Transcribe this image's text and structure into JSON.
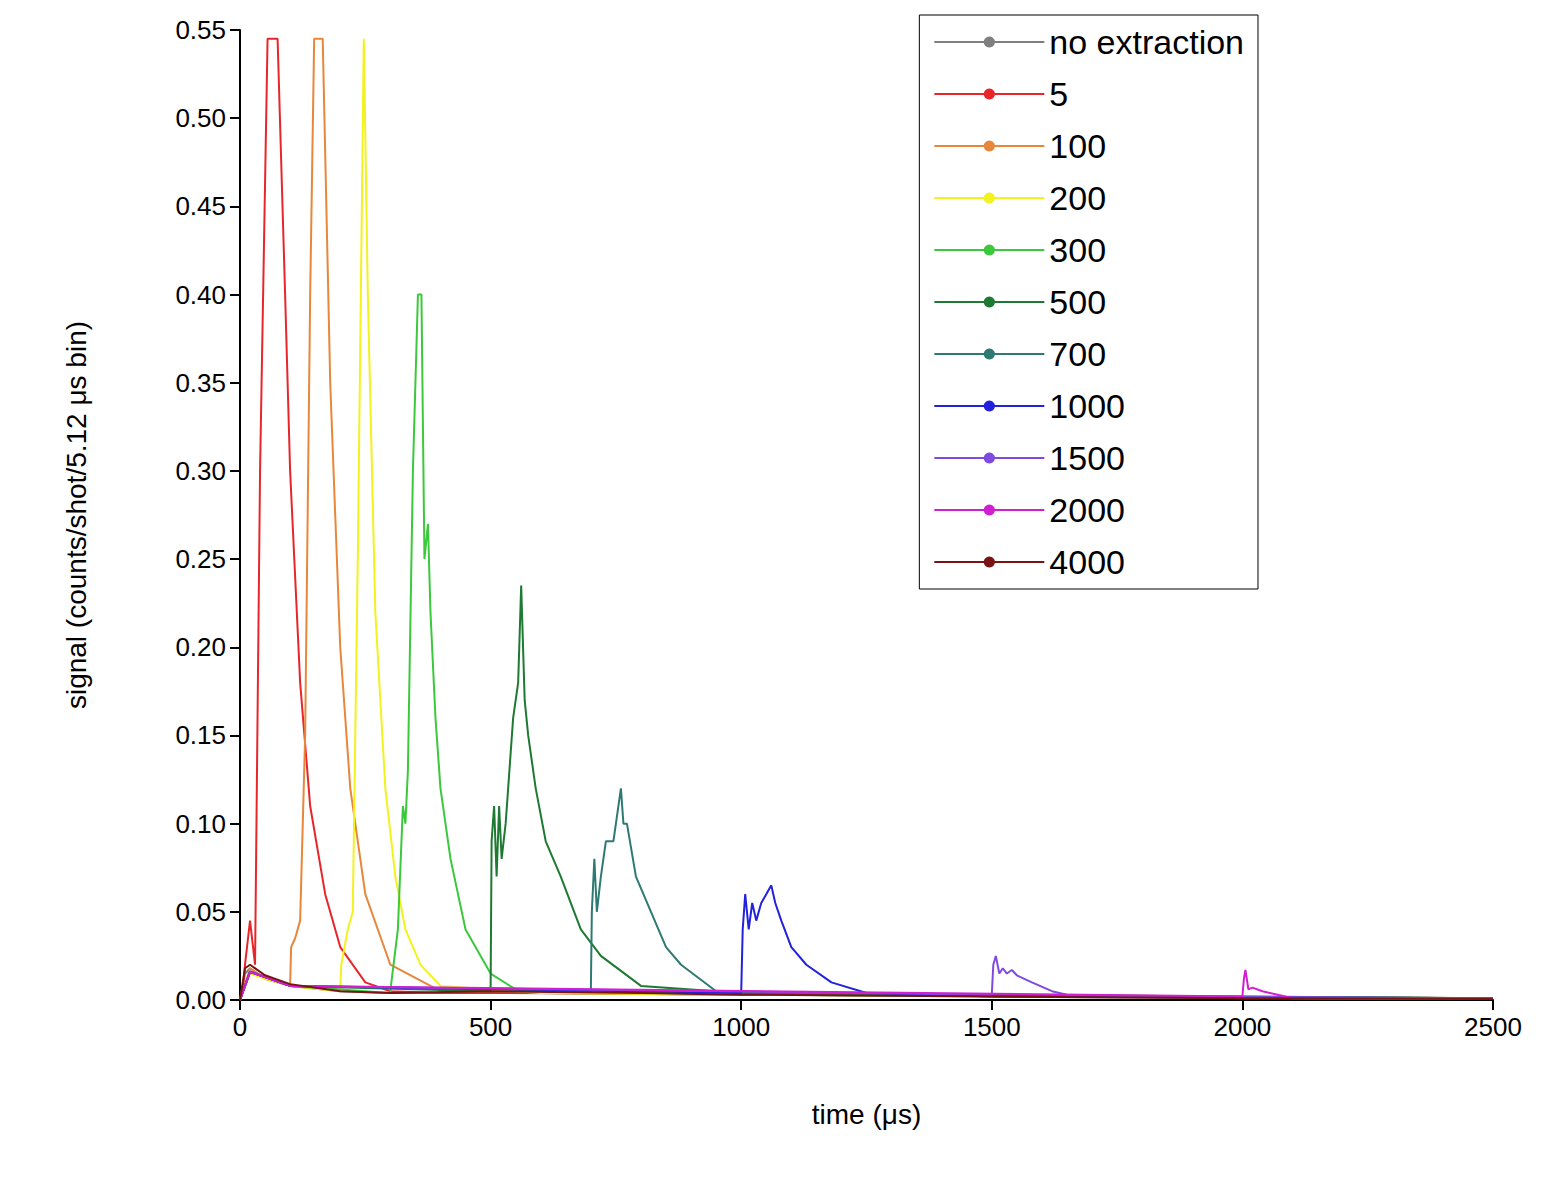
{
  "chart_data": {
    "type": "line",
    "x_label": "time (μs)",
    "y_label": "signal (counts/shot/5.12 μs bin)",
    "xlim": [
      0,
      2500
    ],
    "xticks": [
      0,
      500,
      1000,
      1500,
      2000,
      2500
    ],
    "ylim": [
      0,
      0.55
    ],
    "yticks": [
      {
        "value": 0,
        "label": "0.00"
      },
      0.05,
      {
        "value": 0.1,
        "label": "0.10"
      },
      0.15,
      {
        "value": 0.2,
        "label": "0.20"
      },
      0.25,
      {
        "value": 0.3,
        "label": "0.30"
      },
      0.35,
      {
        "value": 0.4,
        "label": "0.40"
      },
      0.45,
      {
        "value": 0.5,
        "label": "0.50"
      },
      0.55
    ],
    "grid": false,
    "legend": "upper right",
    "series": [
      {
        "name": "no extraction",
        "color": "#7f7f7f",
        "x": [
          0,
          10,
          20,
          50,
          100,
          200,
          300,
          500,
          1000,
          1500,
          2000,
          2500
        ],
        "values": [
          0,
          0.015,
          0.018,
          0.012,
          0.008,
          0.005,
          0.004,
          0.004,
          0.003,
          0.002,
          0.001,
          0.0005
        ]
      },
      {
        "name": "5",
        "color": "#e8262a",
        "x": [
          0,
          5,
          10,
          20,
          30,
          40,
          55,
          75,
          90,
          100,
          120,
          140,
          170,
          200,
          250,
          300,
          400,
          600,
          1000,
          2500
        ],
        "values": [
          0,
          0.005,
          0.02,
          0.045,
          0.02,
          0.3,
          0.545,
          0.545,
          0.4,
          0.3,
          0.18,
          0.11,
          0.06,
          0.03,
          0.01,
          0.005,
          0.004,
          0.004,
          0.003,
          0.001
        ]
      },
      {
        "name": "100",
        "color": "#e8873a",
        "x": [
          0,
          20,
          50,
          100,
          102,
          110,
          120,
          130,
          140,
          148,
          165,
          180,
          200,
          220,
          250,
          300,
          400,
          1000,
          2500
        ],
        "values": [
          0,
          0.018,
          0.012,
          0.008,
          0.03,
          0.035,
          0.045,
          0.15,
          0.4,
          0.545,
          0.545,
          0.35,
          0.2,
          0.12,
          0.06,
          0.02,
          0.005,
          0.004,
          0.001
        ]
      },
      {
        "name": "200",
        "color": "#f2f21e",
        "x": [
          0,
          20,
          50,
          100,
          200,
          202,
          215,
          225,
          235,
          247,
          255,
          270,
          290,
          310,
          330,
          360,
          400,
          600,
          1000,
          2500
        ],
        "values": [
          0,
          0.015,
          0.012,
          0.008,
          0.005,
          0.02,
          0.04,
          0.05,
          0.25,
          0.545,
          0.4,
          0.22,
          0.12,
          0.07,
          0.04,
          0.02,
          0.008,
          0.004,
          0.003,
          0.001
        ]
      },
      {
        "name": "300",
        "color": "#3cc83c",
        "x": [
          0,
          20,
          100,
          300,
          302,
          315,
          325,
          330,
          335,
          345,
          355,
          362,
          368,
          375,
          380,
          390,
          400,
          420,
          450,
          500,
          550,
          1000,
          2500
        ],
        "values": [
          0,
          0.016,
          0.008,
          0.004,
          0.01,
          0.04,
          0.11,
          0.1,
          0.13,
          0.3,
          0.4,
          0.4,
          0.25,
          0.27,
          0.22,
          0.16,
          0.12,
          0.08,
          0.04,
          0.015,
          0.006,
          0.003,
          0.001
        ]
      },
      {
        "name": "500",
        "color": "#1e7a32",
        "x": [
          0,
          20,
          100,
          500,
          502,
          507,
          512,
          517,
          522,
          530,
          545,
          555,
          561,
          568,
          575,
          590,
          610,
          640,
          680,
          720,
          800,
          1000,
          2500
        ],
        "values": [
          0,
          0.016,
          0.008,
          0.005,
          0.09,
          0.11,
          0.07,
          0.11,
          0.08,
          0.1,
          0.16,
          0.18,
          0.235,
          0.17,
          0.15,
          0.12,
          0.09,
          0.07,
          0.04,
          0.025,
          0.008,
          0.004,
          0.001
        ]
      },
      {
        "name": "700",
        "color": "#2e7a72",
        "x": [
          0,
          20,
          100,
          700,
          702,
          707,
          712,
          720,
          730,
          745,
          760,
          765,
          772,
          790,
          820,
          850,
          880,
          950,
          1200,
          2500
        ],
        "values": [
          0,
          0.016,
          0.008,
          0.005,
          0.05,
          0.08,
          0.05,
          0.07,
          0.09,
          0.09,
          0.12,
          0.1,
          0.1,
          0.07,
          0.05,
          0.03,
          0.02,
          0.005,
          0.003,
          0.001
        ]
      },
      {
        "name": "1000",
        "color": "#2222dd",
        "x": [
          0,
          20,
          100,
          1000,
          1003,
          1008,
          1015,
          1022,
          1030,
          1040,
          1050,
          1060,
          1068,
          1080,
          1100,
          1130,
          1180,
          1250,
          1500,
          2500
        ],
        "values": [
          0,
          0.016,
          0.008,
          0.004,
          0.04,
          0.06,
          0.04,
          0.055,
          0.045,
          0.055,
          0.06,
          0.065,
          0.055,
          0.045,
          0.03,
          0.02,
          0.01,
          0.004,
          0.002,
          0.001
        ]
      },
      {
        "name": "1500",
        "color": "#7f4ae0",
        "x": [
          0,
          20,
          100,
          1500,
          1503,
          1508,
          1515,
          1522,
          1530,
          1540,
          1550,
          1580,
          1620,
          1650,
          1800,
          2500
        ],
        "values": [
          0,
          0.016,
          0.008,
          0.003,
          0.02,
          0.025,
          0.015,
          0.018,
          0.015,
          0.017,
          0.014,
          0.01,
          0.005,
          0.003,
          0.002,
          0.001
        ]
      },
      {
        "name": "2000",
        "color": "#d01ed0",
        "x": [
          0,
          20,
          100,
          2000,
          2003,
          2006,
          2012,
          2020,
          2040,
          2070,
          2100,
          2500
        ],
        "values": [
          0,
          0.016,
          0.008,
          0.002,
          0.012,
          0.017,
          0.006,
          0.007,
          0.005,
          0.003,
          0.001,
          0.0005
        ]
      },
      {
        "name": "4000",
        "color": "#7a1414",
        "x": [
          0,
          10,
          20,
          50,
          100,
          200,
          300,
          500,
          800,
          1000,
          1500,
          2000,
          2500
        ],
        "values": [
          0,
          0.018,
          0.02,
          0.014,
          0.009,
          0.005,
          0.004,
          0.005,
          0.004,
          0.003,
          0.002,
          0.001,
          0.0005
        ]
      }
    ]
  }
}
